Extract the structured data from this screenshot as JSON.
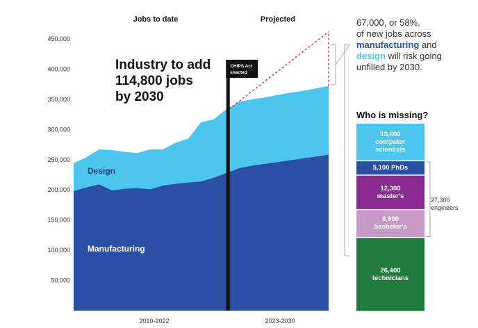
{
  "chart_data": {
    "type": "area",
    "period_headers": [
      "Jobs to date",
      "Projected"
    ],
    "x_ranges": [
      "2010-2022",
      "2023-2030"
    ],
    "x": [
      2010,
      2011,
      2012,
      2013,
      2014,
      2015,
      2016,
      2017,
      2018,
      2019,
      2020,
      2021,
      2022,
      2023,
      2024,
      2025,
      2026,
      2027,
      2028,
      2029,
      2030
    ],
    "series": [
      {
        "name": "Manufacturing",
        "color": "#2b4fa3",
        "values": [
          198000,
          204000,
          209000,
          199000,
          202000,
          203000,
          201000,
          207000,
          210000,
          212000,
          214000,
          220000,
          228000,
          236000,
          240000,
          243000,
          246000,
          249000,
          252000,
          255000,
          258000
        ]
      },
      {
        "name": "Design",
        "color": "#4cc6ee",
        "values": [
          244000,
          254000,
          267000,
          266000,
          263000,
          261000,
          267000,
          267000,
          278000,
          285000,
          312000,
          317000,
          334000,
          346000,
          350000,
          353000,
          357000,
          361000,
          364000,
          368000,
          372000
        ]
      }
    ],
    "projected_line_top": 462000,
    "ylim": [
      0,
      450000
    ],
    "yticks": [
      "450,000",
      "400,000",
      "350,000",
      "300,000",
      "250,000",
      "200,000",
      "150,000",
      "100,000",
      "50,000"
    ],
    "ytick_values": [
      450000,
      400000,
      350000,
      300000,
      250000,
      200000,
      150000,
      100000,
      50000
    ],
    "marker_label": [
      "CHIPS Act",
      "enacted"
    ],
    "headline": [
      "Industry to add",
      "114,800 jobs",
      "by 2030"
    ],
    "callout": {
      "line1": "67,000, or 58%,",
      "line2": "of new jobs across",
      "manufacturing": "manufacturing",
      "and": " and",
      "design": "design",
      "rest1": " will risk going",
      "rest2": "unfilled by 2030."
    },
    "who_missing": "Who is missing?",
    "missing": [
      {
        "value": 13400,
        "lines": [
          "13,400",
          "computer",
          "scientists"
        ],
        "color": "#4cc6ee"
      },
      {
        "value": 5100,
        "lines": [
          "5,100 PhDs"
        ],
        "color": "#2b4fa3"
      },
      {
        "value": 12300,
        "lines": [
          "12,300",
          "master's"
        ],
        "color": "#8a2a93"
      },
      {
        "value": 9900,
        "lines": [
          "9,900",
          "bachelor's"
        ],
        "color": "#c89ac6"
      },
      {
        "value": 26400,
        "lines": [
          "26,400",
          "technicians"
        ],
        "color": "#1f7b3e"
      }
    ],
    "engineers_label": [
      "27,300",
      "engineers"
    ]
  }
}
